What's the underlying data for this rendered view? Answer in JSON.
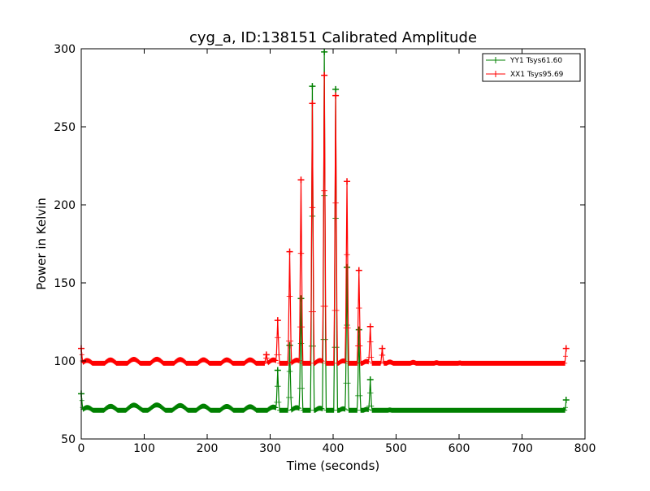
{
  "chart_data": {
    "type": "line",
    "title": "cyg_a, ID:138151 Calibrated Amplitude",
    "xlabel": "Time (seconds)",
    "ylabel": "Power in Kelvin",
    "xlim": [
      0,
      800
    ],
    "ylim": [
      50,
      300
    ],
    "xticks": [
      0,
      100,
      200,
      300,
      400,
      500,
      600,
      700,
      800
    ],
    "yticks": [
      50,
      100,
      150,
      200,
      250,
      300
    ],
    "grid": false,
    "legend_position": "top-right",
    "series": [
      {
        "name": "YY1 Tsys61.60",
        "color": "#008000",
        "baseline": [
          [
            0,
            68
          ],
          [
            100,
            70
          ],
          [
            200,
            69
          ],
          [
            300,
            68.5
          ],
          [
            400,
            67.5
          ],
          [
            500,
            66.5
          ],
          [
            600,
            65
          ],
          [
            700,
            64
          ],
          [
            770,
            63
          ]
        ],
        "oscillation": {
          "amplitude": 2,
          "period_seconds": 37
        },
        "spikes": [
          {
            "x": 0,
            "y": 79
          },
          {
            "x": 312,
            "y": 94
          },
          {
            "x": 331,
            "y": 110
          },
          {
            "x": 349,
            "y": 140
          },
          {
            "x": 367,
            "y": 276
          },
          {
            "x": 386,
            "y": 298
          },
          {
            "x": 404,
            "y": 274
          },
          {
            "x": 422,
            "y": 160
          },
          {
            "x": 441,
            "y": 120
          },
          {
            "x": 459,
            "y": 88
          },
          {
            "x": 770,
            "y": 75
          }
        ]
      },
      {
        "name": "XX1 Tsys95.69",
        "color": "#ff0000",
        "baseline": [
          [
            0,
            98
          ],
          [
            100,
            99
          ],
          [
            200,
            98.5
          ],
          [
            300,
            98.5
          ],
          [
            400,
            98
          ],
          [
            500,
            97
          ],
          [
            600,
            96.5
          ],
          [
            700,
            96
          ],
          [
            770,
            95.5
          ]
        ],
        "oscillation": {
          "amplitude": 2.2,
          "period_seconds": 37
        },
        "spikes": [
          {
            "x": 0,
            "y": 108
          },
          {
            "x": 294,
            "y": 104
          },
          {
            "x": 312,
            "y": 126
          },
          {
            "x": 331,
            "y": 170
          },
          {
            "x": 349,
            "y": 216
          },
          {
            "x": 367,
            "y": 265
          },
          {
            "x": 386,
            "y": 283
          },
          {
            "x": 404,
            "y": 270
          },
          {
            "x": 422,
            "y": 215
          },
          {
            "x": 441,
            "y": 158
          },
          {
            "x": 459,
            "y": 122
          },
          {
            "x": 478,
            "y": 108
          },
          {
            "x": 770,
            "y": 108
          }
        ]
      }
    ]
  }
}
